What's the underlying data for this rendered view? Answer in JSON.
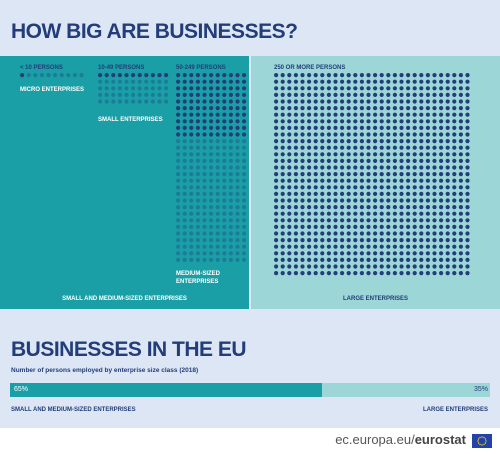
{
  "title": "HOW BIG ARE BUSINESSES?",
  "classes": {
    "micro": {
      "size_label": "< 10 PERSONS",
      "name": "MICRO ENTERPRISES"
    },
    "small": {
      "size_label": "10-49 PERSONS",
      "name": "SMALL ENTERPRISES"
    },
    "medium": {
      "size_label": "50-249 PERSONS",
      "name_line1": "MEDIUM-SIZED",
      "name_line2": "ENTERPRISES"
    },
    "large": {
      "size_label": "250 OR MORE PERSONS",
      "name": "LARGE ENTERPRISES"
    }
  },
  "group_labels": {
    "sme": "SMALL AND MEDIUM-SIZED ENTERPRISES",
    "large": "LARGE ENTERPRISES"
  },
  "section2": {
    "title": "BUSINESSES IN THE EU",
    "subtitle": "Number of persons employed by enterprise size class (2018)"
  },
  "chart_data": {
    "type": "bar",
    "title": "Number of persons employed by enterprise size class (2018)",
    "categories": [
      "SMALL AND MEDIUM-SIZED ENTERPRISES",
      "LARGE ENTERPRISES"
    ],
    "values": [
      65,
      35
    ],
    "value_labels": [
      "65%",
      "35%"
    ],
    "stacked": true,
    "orientation": "horizontal"
  },
  "colors": {
    "sme": "#1a9fa6",
    "large": "#9dd6d6",
    "dots": "#223d7a",
    "text": "#223d7a",
    "background": "#dce6f5"
  },
  "footer": {
    "source_prefix": "ec.europa.eu/",
    "source_brand": "eurostat",
    "flag_icon": "eu-flag-icon"
  }
}
